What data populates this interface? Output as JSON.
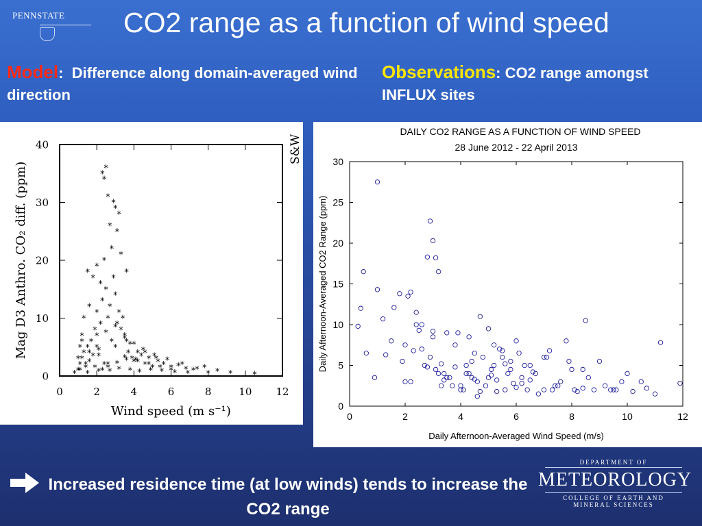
{
  "header": {
    "logo_text": "PENNSTATE",
    "title": "CO2 range as a function of wind speed"
  },
  "captions": {
    "left_label": "Model",
    "left_colon": ":",
    "left_text": "Difference along domain-averaged wind direction",
    "right_label": "Observations",
    "right_colon": ":",
    "right_text": "CO2 range amongst INFLUX sites"
  },
  "footer": {
    "text": "Increased residence time (at low winds) tends to increase the CO2 range",
    "dept_top": "DEPARTMENT OF",
    "dept_name": "METEOROLOGY",
    "dept_line1": "COLLEGE OF EARTH AND",
    "dept_line2": "MINERAL SCIENCES"
  },
  "chart_data": [
    {
      "type": "scatter",
      "title": "",
      "corner_label": "S&W",
      "xlabel": "Wind speed (m s⁻¹)",
      "ylabel": "Mag D3 Anthro. CO₂ diff. (ppm)",
      "xlim": [
        0,
        12
      ],
      "ylim": [
        0,
        40
      ],
      "xticks": [
        0,
        2,
        4,
        6,
        8,
        10,
        12
      ],
      "yticks": [
        0,
        10,
        20,
        30,
        40
      ],
      "marker": "*",
      "color": "#000000",
      "series": [
        {
          "x": [
            0.8,
            1.0,
            1.1,
            1.2,
            1.3,
            1.4,
            1.5,
            1.6,
            1.7,
            1.8,
            1.9,
            2.0,
            2.0,
            2.1,
            2.2,
            2.3,
            2.4,
            2.4,
            2.5,
            2.6,
            2.7,
            2.8,
            2.9,
            3.0,
            3.0,
            3.1,
            3.2,
            3.3,
            3.4,
            3.5,
            3.6,
            3.7,
            3.8,
            3.9,
            4.0,
            4.2,
            4.4,
            4.6,
            4.8,
            5.0,
            5.3,
            5.6,
            6.0,
            6.4,
            6.8,
            7.2,
            7.8,
            8.5,
            9.2,
            10.5,
            2.3,
            2.4,
            2.5,
            2.6,
            2.7,
            2.9,
            3.0,
            3.1,
            3.2,
            2.0,
            1.8,
            1.6,
            1.5,
            1.3,
            1.2,
            1.1,
            2.2,
            2.8,
            3.3,
            3.6,
            2.1,
            2.6,
            3.5,
            4.1,
            4.5,
            5.2,
            1.0,
            1.4,
            1.9,
            2.3,
            2.7,
            3.2,
            3.8,
            4.3,
            4.9,
            5.5,
            6.2,
            1.2,
            1.6,
            2.0,
            2.5,
            3.0,
            3.5,
            4.0,
            4.6,
            5.1,
            5.8,
            6.6,
            7.4,
            1.1,
            1.5,
            2.1,
            2.6,
            3.1,
            3.6,
            4.2,
            4.8,
            5.4,
            6.0,
            6.9,
            8.0
          ],
          "y": [
            0.5,
            1.0,
            2.0,
            3.0,
            4.0,
            1.5,
            5.0,
            2.5,
            6.0,
            3.5,
            8.0,
            7.0,
            11.0,
            4.5,
            9.0,
            13.0,
            2.0,
            20.0,
            15.0,
            10.0,
            12.0,
            6.0,
            17.0,
            14.0,
            5.0,
            9.0,
            11.0,
            8.0,
            10.0,
            7.0,
            6.0,
            4.0,
            5.5,
            3.0,
            2.5,
            4.0,
            3.5,
            2.0,
            3.0,
            1.5,
            2.5,
            2.0,
            1.5,
            1.8,
            1.2,
            1.0,
            1.5,
            0.8,
            0.5,
            0.3,
            35.0,
            34.0,
            36.0,
            31.0,
            26.0,
            30.0,
            29.0,
            25.0,
            28.0,
            19.0,
            17.0,
            12.0,
            18.0,
            10.0,
            7.0,
            5.0,
            16.0,
            22.0,
            21.0,
            18.0,
            3.5,
            2.0,
            3.2,
            2.8,
            4.5,
            3.0,
            3.0,
            2.0,
            1.5,
            1.0,
            0.8,
            1.2,
            1.0,
            0.7,
            1.0,
            0.8,
            0.6,
            6.0,
            4.0,
            5.0,
            7.5,
            8.5,
            6.5,
            5.5,
            4.0,
            3.5,
            2.8,
            2.0,
            1.2,
            1.0,
            0.5,
            0.8,
            1.5,
            2.2,
            2.8,
            2.5,
            2.0,
            1.5,
            1.0,
            0.5,
            0.5
          ]
        }
      ]
    },
    {
      "type": "scatter",
      "title": "DAILY CO2 RANGE AS A FUNCTION OF WIND SPEED",
      "subtitle": "28 June 2012 - 22 April 2013",
      "xlabel": "Daily Afternoon-Averaged Wind Speed (m/s)",
      "ylabel": "Daily Afternoon-Averaged CO2 Range (ppm)",
      "xlim": [
        0,
        12
      ],
      "ylim": [
        0,
        30
      ],
      "xticks": [
        0,
        2,
        4,
        6,
        8,
        10,
        12
      ],
      "yticks": [
        0,
        5,
        10,
        15,
        20,
        25,
        30
      ],
      "marker": "o",
      "color": "#1a1a9a",
      "series": [
        {
          "x": [
            1.0,
            0.5,
            0.4,
            2.9,
            3.0,
            3.1,
            3.2,
            2.2,
            0.6,
            0.9,
            1.0,
            1.2,
            1.5,
            1.8,
            2.4,
            2.8,
            3.5,
            3.8,
            4.5,
            4.7,
            5.0,
            5.2,
            5.5,
            6.0,
            6.5,
            7.0,
            7.5,
            7.8,
            8.0,
            8.5,
            9.0,
            9.5,
            10.0,
            10.5,
            11.0,
            11.2,
            11.9,
            0.3,
            1.3,
            1.6,
            2.0,
            2.3,
            2.5,
            2.6,
            2.7,
            3.3,
            3.4,
            3.6,
            3.9,
            4.0,
            4.1,
            4.2,
            4.3,
            4.4,
            4.6,
            4.8,
            4.9,
            5.1,
            5.3,
            5.4,
            5.6,
            5.7,
            5.8,
            5.9,
            6.1,
            6.2,
            6.3,
            6.4,
            6.6,
            6.8,
            7.1,
            7.3,
            7.4,
            7.6,
            7.9,
            8.2,
            8.4,
            8.6,
            8.8,
            9.2,
            9.6,
            9.8,
            10.2,
            10.7,
            2.1,
            2.4,
            2.9,
            3.0,
            3.2,
            3.7,
            4.2,
            4.7,
            5.0,
            5.5,
            6.0,
            1.9,
            2.2,
            2.6,
            3.1,
            3.5,
            4.0,
            4.5,
            5.2,
            5.8,
            6.7,
            7.2,
            8.1,
            2.0,
            2.8,
            3.4,
            4.3,
            5.1,
            6.2,
            7.0,
            3.0,
            3.3,
            3.8,
            4.4,
            4.6,
            5.3,
            5.6,
            6.5,
            8.4,
            9.4
          ],
          "y": [
            27.5,
            16.5,
            12.0,
            22.7,
            20.3,
            18.2,
            16.5,
            14.0,
            6.5,
            3.5,
            14.3,
            10.7,
            8.0,
            13.8,
            10.0,
            18.3,
            9.0,
            7.5,
            6.5,
            11.0,
            9.5,
            5.0,
            6.0,
            8.0,
            5.0,
            6.0,
            2.5,
            8.0,
            4.5,
            10.5,
            5.5,
            2.0,
            4.0,
            3.0,
            1.5,
            7.8,
            2.8,
            9.8,
            6.3,
            12.1,
            7.5,
            6.8,
            9.3,
            10.0,
            5.0,
            5.2,
            4.0,
            3.5,
            9.0,
            2.5,
            2.0,
            4.0,
            8.5,
            5.5,
            3.0,
            6.0,
            2.5,
            4.5,
            3.2,
            7.0,
            2.0,
            4.0,
            5.5,
            2.8,
            6.5,
            3.5,
            5.0,
            2.0,
            4.2,
            1.5,
            6.0,
            2.0,
            2.5,
            3.0,
            5.5,
            1.8,
            2.2,
            3.5,
            2.0,
            2.5,
            2.0,
            3.0,
            1.8,
            2.2,
            13.5,
            11.5,
            6.0,
            8.5,
            4.0,
            2.5,
            5.0,
            1.8,
            3.5,
            6.8,
            2.3,
            5.5,
            3.0,
            7.0,
            4.5,
            3.5,
            2.0,
            3.3,
            7.5,
            4.5,
            4.0,
            6.8,
            2.0,
            3.0,
            4.8,
            3.2,
            4.0,
            3.8,
            2.8,
            2.0,
            9.2,
            2.5,
            4.8,
            3.5,
            1.2,
            1.8,
            5.2,
            3.2,
            4.5,
            2.0
          ]
        }
      ]
    }
  ]
}
